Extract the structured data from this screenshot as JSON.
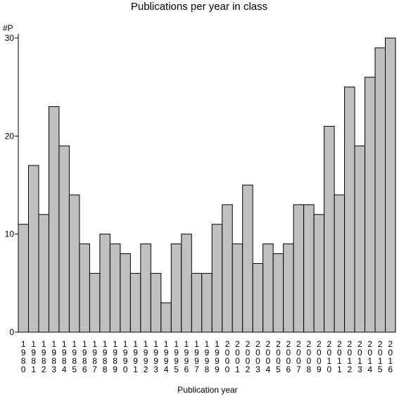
{
  "chart_data": {
    "type": "bar",
    "title": "Publications per year in class",
    "xlabel": "Publication year",
    "ylabel": "#P",
    "ylim": [
      0,
      30
    ],
    "yticks": [
      0,
      10,
      20,
      30
    ],
    "grid": false,
    "colors": {
      "bar_fill": "#c0c0c0",
      "bar_stroke": "#000000"
    },
    "categories": [
      "1980",
      "1981",
      "1982",
      "1983",
      "1984",
      "1985",
      "1986",
      "1987",
      "1988",
      "1989",
      "1990",
      "1991",
      "1992",
      "1993",
      "1994",
      "1995",
      "1996",
      "1997",
      "1998",
      "1999",
      "2000",
      "2001",
      "2002",
      "2003",
      "2004",
      "2005",
      "2006",
      "2007",
      "2008",
      "2009",
      "2010",
      "2011",
      "2012",
      "2013",
      "2014",
      "2015",
      "2016"
    ],
    "values": [
      11,
      17,
      12,
      23,
      19,
      14,
      9,
      6,
      10,
      9,
      8,
      6,
      9,
      6,
      3,
      9,
      10,
      6,
      6,
      11,
      13,
      9,
      15,
      7,
      9,
      8,
      9,
      13,
      13,
      12,
      21,
      14,
      25,
      19,
      26,
      29,
      30
    ]
  }
}
